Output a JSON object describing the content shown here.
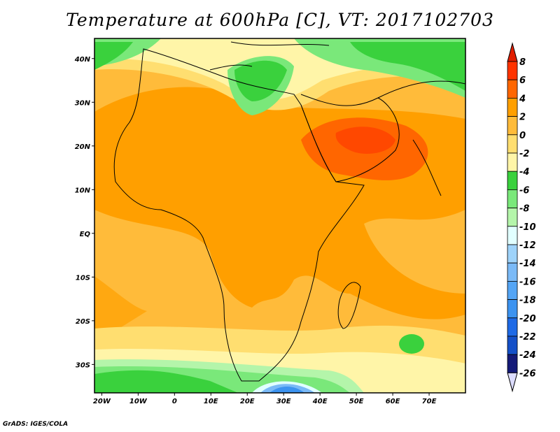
{
  "title": "Temperature at 600hPa [C], VT: 2017102703",
  "footer": "GrADS: IGES/COLA",
  "map": {
    "projection": "lat-lon",
    "lon_range": [
      -22,
      80
    ],
    "lat_range": [
      -36.5,
      44.6
    ],
    "lon_ticks": [
      {
        "v": -20,
        "label": "20W"
      },
      {
        "v": -10,
        "label": "10W"
      },
      {
        "v": 0,
        "label": "0"
      },
      {
        "v": 10,
        "label": "10E"
      },
      {
        "v": 20,
        "label": "20E"
      },
      {
        "v": 30,
        "label": "30E"
      },
      {
        "v": 40,
        "label": "40E"
      },
      {
        "v": 50,
        "label": "50E"
      },
      {
        "v": 60,
        "label": "60E"
      },
      {
        "v": 70,
        "label": "70E"
      }
    ],
    "lat_ticks": [
      {
        "v": 40,
        "label": "40N"
      },
      {
        "v": 30,
        "label": "30N"
      },
      {
        "v": 20,
        "label": "20N"
      },
      {
        "v": 10,
        "label": "10N"
      },
      {
        "v": 0,
        "label": "EQ"
      },
      {
        "v": -10,
        "label": "10S"
      },
      {
        "v": -20,
        "label": "20S"
      },
      {
        "v": -30,
        "label": "30S"
      }
    ]
  },
  "colorbar": {
    "labels": [
      "8",
      "6",
      "4",
      "2",
      "0",
      "-2",
      "-4",
      "-6",
      "-8",
      "-10",
      "-12",
      "-14",
      "-16",
      "-18",
      "-20",
      "-22",
      "-24",
      "-26"
    ],
    "top_arrow_color": "#e01e00",
    "bottom_arrow_color": "#dcdcff",
    "colors": [
      "#ff3300",
      "#ff6600",
      "#ff9f00",
      "#ffbb3a",
      "#ffde70",
      "#fff5a8",
      "#3ad13d",
      "#7ae87a",
      "#b4f5aa",
      "#e1ffff",
      "#9ed3fa",
      "#7bbaf7",
      "#54a5f5",
      "#3c93f0",
      "#1e6ae6",
      "#1450c8",
      "#141a78"
    ]
  }
}
